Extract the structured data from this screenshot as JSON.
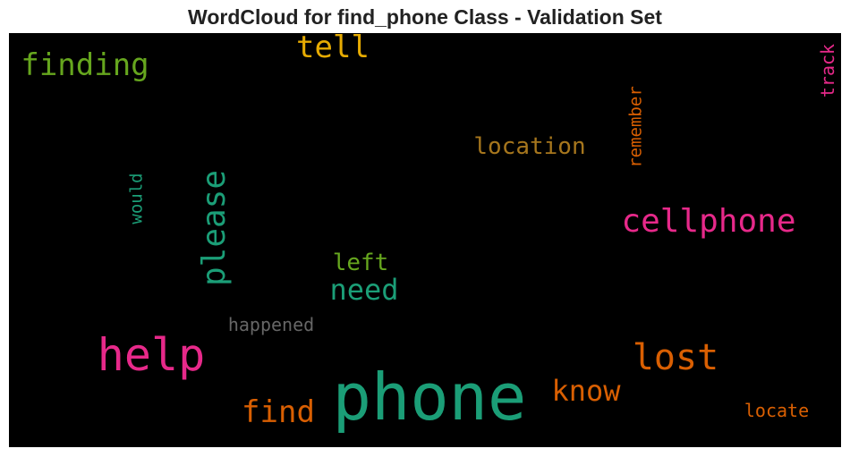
{
  "title": "WordCloud for find_phone Class - Validation Set",
  "words": [
    {
      "text": "phone",
      "color": "#1b9e77",
      "size": 72,
      "vertical": false
    },
    {
      "text": "help",
      "color": "#e7298a",
      "size": 50,
      "vertical": false
    },
    {
      "text": "cellphone",
      "color": "#e7298a",
      "size": 36,
      "vertical": false
    },
    {
      "text": "lost",
      "color": "#d95f02",
      "size": 40,
      "vertical": false
    },
    {
      "text": "please",
      "color": "#1b9e77",
      "size": 36,
      "vertical": true
    },
    {
      "text": "finding",
      "color": "#66a61e",
      "size": 34,
      "vertical": false
    },
    {
      "text": "tell",
      "color": "#e6ab02",
      "size": 34,
      "vertical": false
    },
    {
      "text": "find",
      "color": "#d95f02",
      "size": 34,
      "vertical": false
    },
    {
      "text": "know",
      "color": "#d95f02",
      "size": 32,
      "vertical": false
    },
    {
      "text": "need",
      "color": "#1b9e77",
      "size": 32,
      "vertical": false
    },
    {
      "text": "location",
      "color": "#a6761d",
      "size": 26,
      "vertical": false
    },
    {
      "text": "left",
      "color": "#66a61e",
      "size": 26,
      "vertical": false
    },
    {
      "text": "happened",
      "color": "#666666",
      "size": 20,
      "vertical": false
    },
    {
      "text": "locate",
      "color": "#d95f02",
      "size": 20,
      "vertical": false
    },
    {
      "text": "remember",
      "color": "#d95f02",
      "size": 19,
      "vertical": true
    },
    {
      "text": "track",
      "color": "#e7298a",
      "size": 20,
      "vertical": true
    },
    {
      "text": "would",
      "color": "#1b9e77",
      "size": 19,
      "vertical": true
    }
  ]
}
